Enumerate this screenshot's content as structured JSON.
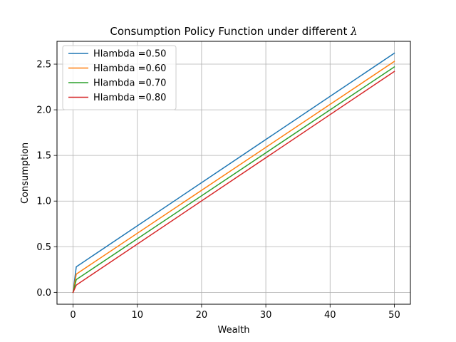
{
  "chart_data": {
    "type": "line",
    "title": "Consumption Policy Function under different ",
    "title_symbol": "λ",
    "xlabel": "Wealth",
    "ylabel": "Consumption",
    "xlim": [
      -2.5,
      52.5
    ],
    "ylim": [
      -0.13,
      2.75
    ],
    "xticks": [
      0,
      10,
      20,
      30,
      40,
      50
    ],
    "xtick_labels": [
      "0",
      "10",
      "20",
      "30",
      "40",
      "50"
    ],
    "yticks": [
      0.0,
      0.5,
      1.0,
      1.5,
      2.0,
      2.5
    ],
    "ytick_labels": [
      "0.0",
      "0.5",
      "1.0",
      "1.5",
      "2.0",
      "2.5"
    ],
    "grid": true,
    "legend_position": "top-left",
    "series": [
      {
        "name": "Hlambda =0.50",
        "color": "#1f77b4",
        "points": [
          [
            0,
            0
          ],
          [
            0.5,
            0.28
          ],
          [
            50,
            2.62
          ]
        ]
      },
      {
        "name": "Hlambda =0.60",
        "color": "#ff7f0e",
        "points": [
          [
            0,
            0
          ],
          [
            0.5,
            0.2
          ],
          [
            50,
            2.53
          ]
        ]
      },
      {
        "name": "Hlambda =0.70",
        "color": "#2ca02c",
        "points": [
          [
            0,
            0
          ],
          [
            0.5,
            0.14
          ],
          [
            50,
            2.47
          ]
        ]
      },
      {
        "name": "Hlambda =0.80",
        "color": "#d62728",
        "points": [
          [
            0,
            0
          ],
          [
            0.5,
            0.08
          ],
          [
            50,
            2.42
          ]
        ]
      }
    ]
  }
}
